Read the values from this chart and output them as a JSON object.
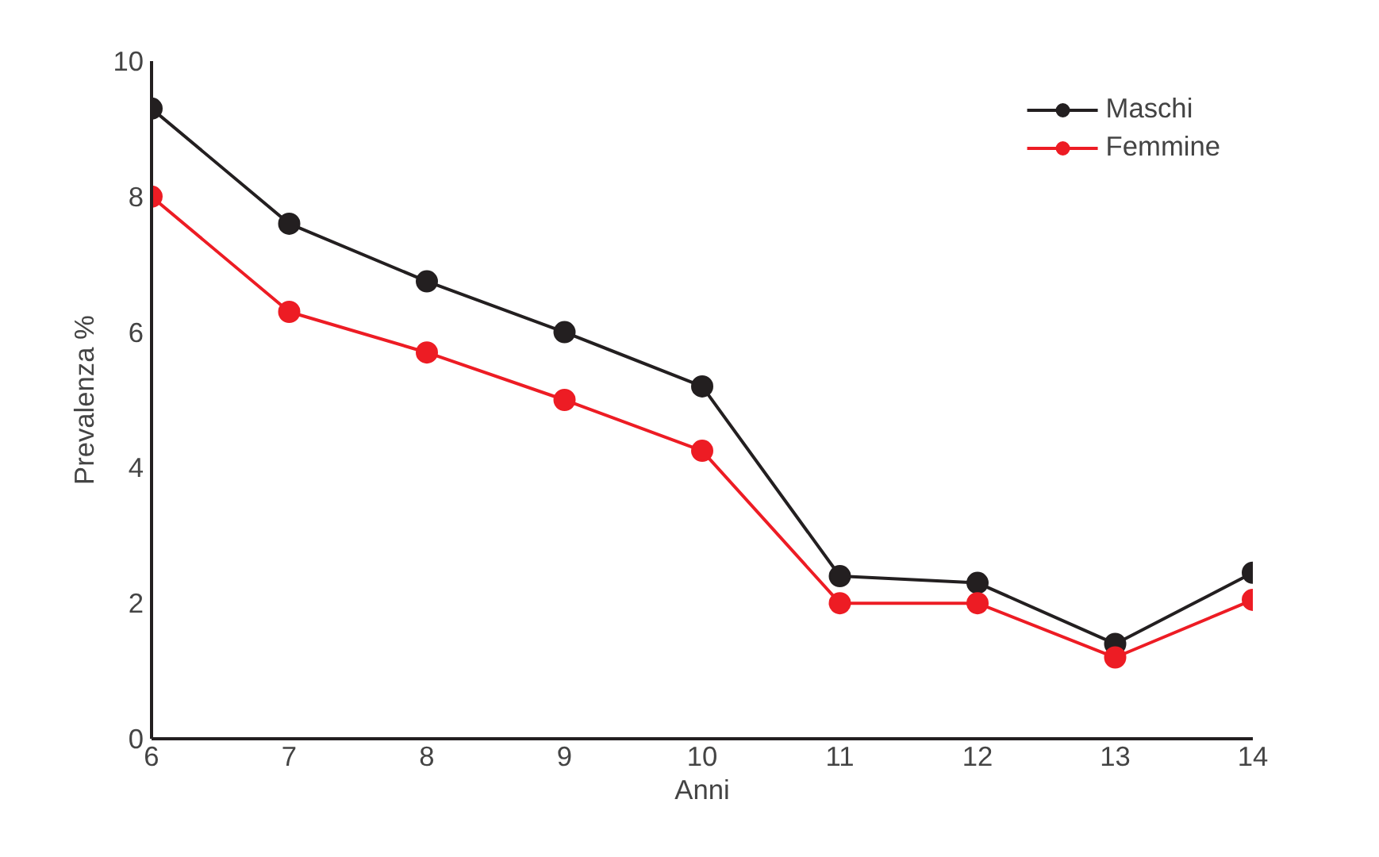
{
  "chart_data": {
    "type": "line",
    "xlabel": "Anni",
    "ylabel": "Prevalenza %",
    "x": [
      6,
      7,
      8,
      9,
      10,
      11,
      12,
      13,
      14
    ],
    "series": [
      {
        "name": "Maschi",
        "color": "#231f20",
        "values": [
          9.3,
          7.6,
          6.75,
          6.0,
          5.2,
          2.4,
          2.3,
          1.4,
          2.45
        ]
      },
      {
        "name": "Femmine",
        "color": "#ed1c24",
        "values": [
          8.0,
          6.3,
          5.7,
          5.0,
          4.25,
          2.0,
          2.0,
          1.2,
          2.05
        ]
      }
    ],
    "xlim": [
      6,
      14
    ],
    "ylim": [
      0,
      10
    ],
    "xticks": [
      6,
      7,
      8,
      9,
      10,
      11,
      12,
      13,
      14
    ],
    "yticks": [
      0,
      2,
      4,
      6,
      8,
      10
    ],
    "grid": false,
    "legend": "top right",
    "marker": "circle",
    "line_style": "solid"
  }
}
